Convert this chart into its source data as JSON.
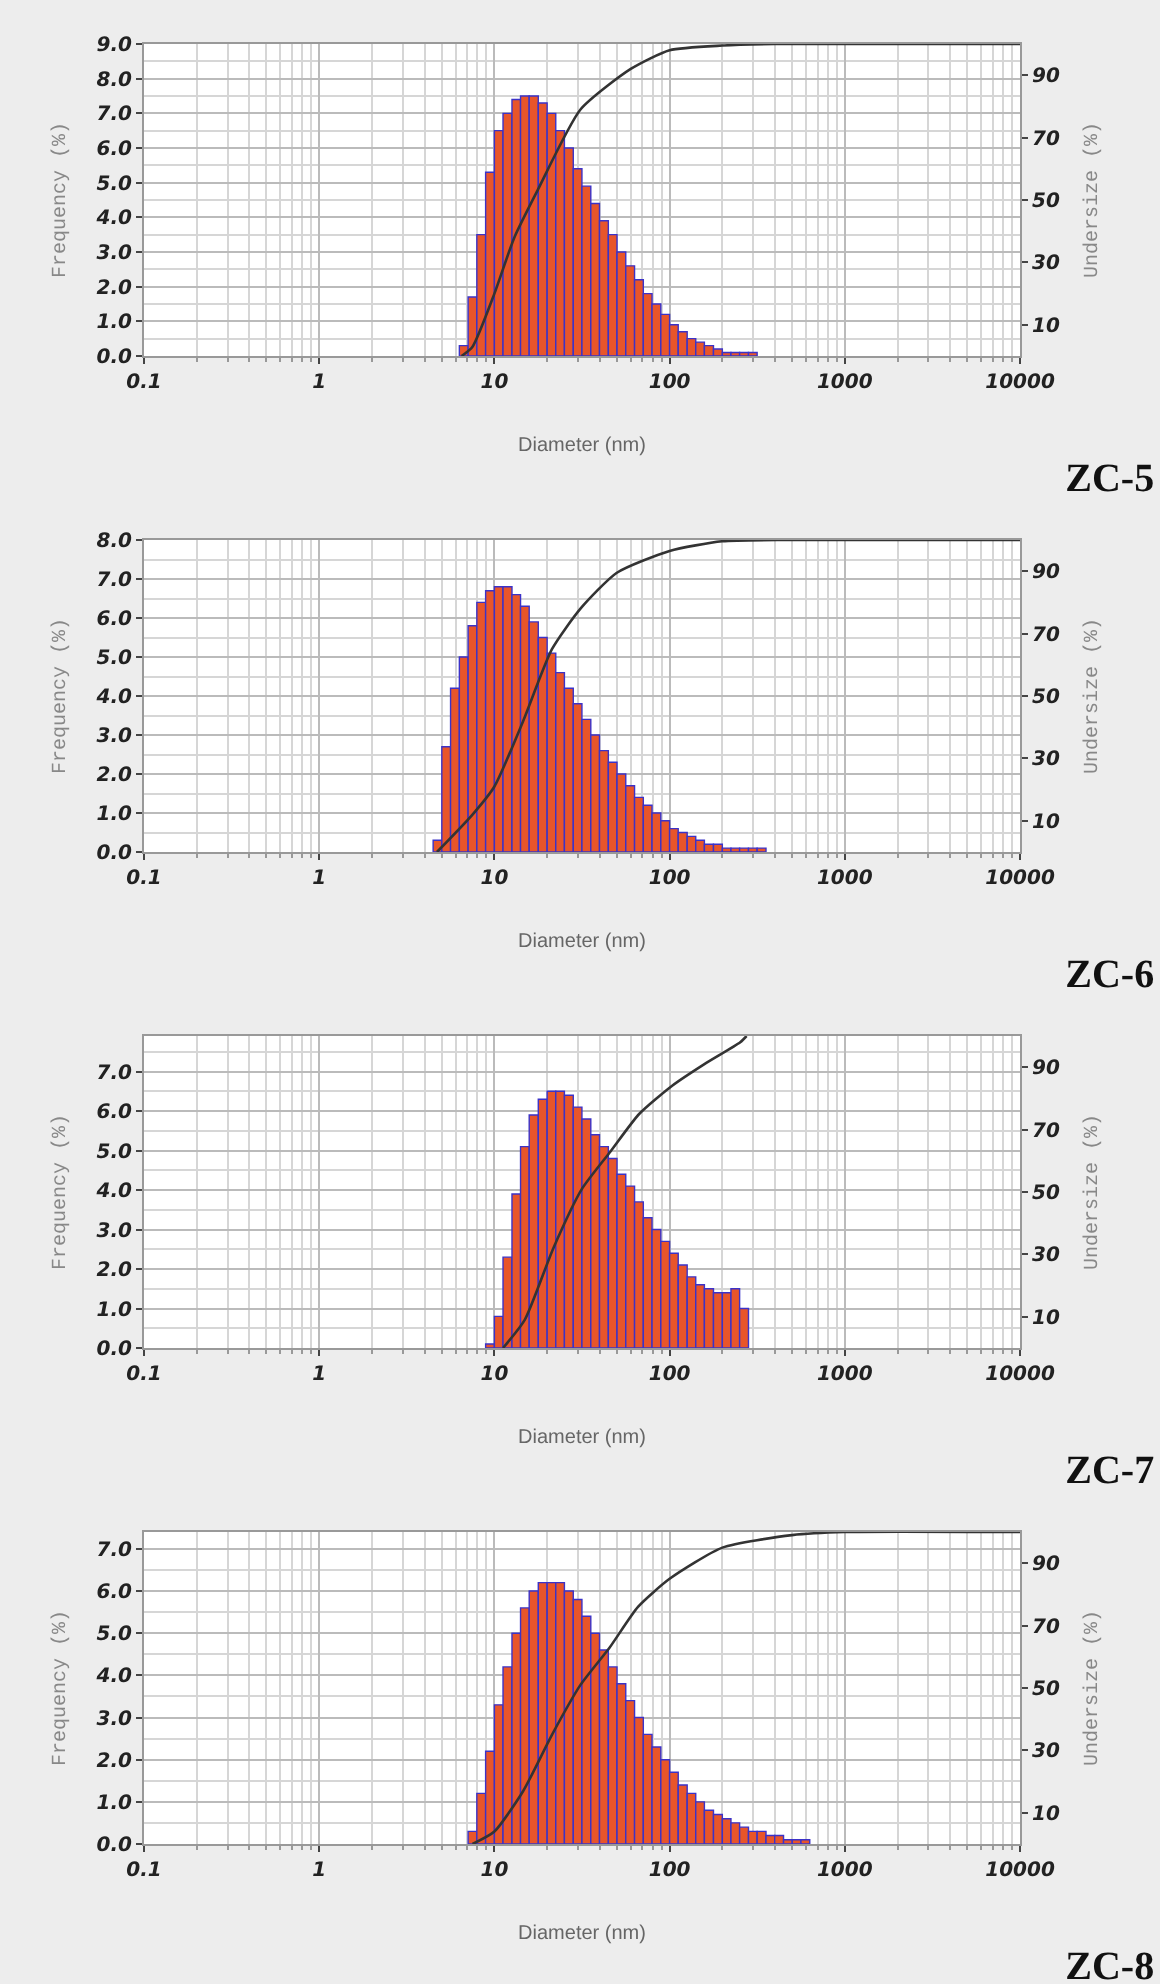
{
  "chart_data": [
    {
      "type": "histogram",
      "title": "ZC-5",
      "xlabel": "Diameter (nm)",
      "ylabel": "Frequency (%)",
      "y2label": "Undersize (%)",
      "log": "x",
      "grid": true,
      "color": "#e8552a",
      "bins": [
        6.31,
        7.08,
        7.94,
        8.91,
        10,
        11.2,
        12.6,
        14.1,
        15.8,
        17.8,
        20,
        22.4,
        25.1,
        28.2,
        31.6,
        35.5,
        39.8,
        44.7,
        50.1,
        56.2,
        63.1,
        70.8,
        79.4,
        89.1,
        100,
        112,
        126,
        141,
        158,
        178,
        200,
        224,
        251,
        282,
        316
      ],
      "values": [
        0.3,
        1.7,
        3.5,
        5.3,
        6.5,
        7.0,
        7.4,
        7.5,
        7.5,
        7.3,
        7.0,
        6.5,
        6.0,
        5.4,
        4.9,
        4.4,
        3.9,
        3.5,
        3.0,
        2.6,
        2.2,
        1.8,
        1.5,
        1.2,
        0.9,
        0.7,
        0.5,
        0.4,
        0.3,
        0.2,
        0.1,
        0.1,
        0.1,
        0.1
      ],
      "series": [
        {
          "type": "line",
          "axis": "y2",
          "color": "#333333",
          "x": [
            6.5,
            7.5,
            10,
            13,
            17.6,
            31,
            60,
            100,
            200,
            400,
            10000
          ],
          "values": [
            0,
            3,
            20,
            38,
            53,
            79,
            92,
            98,
            99.5,
            100,
            100
          ]
        }
      ],
      "xlim": [
        0.1,
        10000
      ],
      "xticks": [
        0.1,
        1,
        10,
        100,
        1000,
        10000
      ],
      "ylim": [
        0,
        9
      ],
      "yticks": [
        {
          "value": 0,
          "label": "0.0"
        },
        {
          "value": 1,
          "label": "1.0"
        },
        {
          "value": 2,
          "label": "2.0"
        },
        {
          "value": 3,
          "label": "3.0"
        },
        {
          "value": 4,
          "label": "4.0"
        },
        {
          "value": 5,
          "label": "5.0"
        },
        {
          "value": 6,
          "label": "6.0"
        },
        {
          "value": 7,
          "label": "7.0"
        },
        {
          "value": 8,
          "label": "8.0"
        },
        {
          "value": 9,
          "label": "9.0"
        }
      ],
      "y2lim": [
        0,
        100
      ],
      "y2ticks": [
        10,
        30,
        50,
        70,
        90
      ]
    },
    {
      "type": "histogram",
      "title": "ZC-6",
      "xlabel": "Diameter (nm)",
      "ylabel": "Frequency (%)",
      "y2label": "Undersize (%)",
      "log": "x",
      "grid": true,
      "color": "#e8552a",
      "bins": [
        4.47,
        5.01,
        5.62,
        6.31,
        7.08,
        7.94,
        8.91,
        10,
        11.2,
        12.6,
        14.1,
        15.8,
        17.8,
        20,
        22.4,
        25.1,
        28.2,
        31.6,
        35.5,
        39.8,
        44.7,
        50.1,
        56.2,
        63.1,
        70.8,
        79.4,
        89.1,
        100,
        112,
        126,
        141,
        158,
        178,
        200,
        224,
        251,
        282,
        316,
        355
      ],
      "values": [
        0.3,
        2.7,
        4.2,
        5.0,
        5.8,
        6.4,
        6.7,
        6.8,
        6.8,
        6.6,
        6.3,
        5.9,
        5.5,
        5.1,
        4.6,
        4.2,
        3.8,
        3.4,
        3.0,
        2.6,
        2.3,
        2.0,
        1.7,
        1.4,
        1.2,
        1.0,
        0.8,
        0.6,
        0.5,
        0.4,
        0.3,
        0.2,
        0.2,
        0.1,
        0.1,
        0.1,
        0.1,
        0.1
      ],
      "series": [
        {
          "type": "line",
          "axis": "y2",
          "color": "#333333",
          "x": [
            4.7,
            7.5,
            10,
            14.6,
            21.3,
            31,
            50,
            100,
            200,
            500,
            10000
          ],
          "values": [
            0,
            12,
            21,
            42,
            65,
            78,
            89.5,
            96.5,
            99.6,
            100,
            100
          ]
        }
      ],
      "xlim": [
        0.1,
        10000
      ],
      "xticks": [
        0.1,
        1,
        10,
        100,
        1000,
        10000
      ],
      "ylim": [
        0,
        8
      ],
      "yticks": [
        {
          "value": 0,
          "label": "0.0"
        },
        {
          "value": 1,
          "label": "1.0"
        },
        {
          "value": 2,
          "label": "2.0"
        },
        {
          "value": 3,
          "label": "3.0"
        },
        {
          "value": 4,
          "label": "4.0"
        },
        {
          "value": 5,
          "label": "5.0"
        },
        {
          "value": 6,
          "label": "6.0"
        },
        {
          "value": 7,
          "label": "7.0"
        },
        {
          "value": 8,
          "label": "8.0"
        }
      ],
      "y2lim": [
        0,
        100
      ],
      "y2ticks": [
        10,
        30,
        50,
        70,
        90
      ]
    },
    {
      "type": "histogram",
      "title": "ZC-7",
      "xlabel": "Diameter (nm)",
      "ylabel": "Frequency (%)",
      "y2label": "Undersize (%)",
      "log": "x",
      "grid": true,
      "color": "#e8552a",
      "bins": [
        8.91,
        10,
        11.2,
        12.6,
        14.1,
        15.8,
        17.8,
        20,
        22.4,
        25.1,
        28.2,
        31.6,
        35.5,
        39.8,
        44.7,
        50.1,
        56.2,
        63.1,
        70.8,
        79.4,
        89.1,
        100,
        112,
        126,
        141,
        158,
        178,
        200,
        224,
        251,
        282
      ],
      "values": [
        0.1,
        0.8,
        2.3,
        3.9,
        5.1,
        5.9,
        6.3,
        6.5,
        6.5,
        6.4,
        6.1,
        5.8,
        5.4,
        5.1,
        4.8,
        4.4,
        4.1,
        3.7,
        3.3,
        3.0,
        2.7,
        2.4,
        2.1,
        1.8,
        1.6,
        1.5,
        1.4,
        1.4,
        1.5,
        1.0
      ],
      "series": [
        {
          "type": "line",
          "axis": "y2",
          "color": "#333333",
          "x": [
            11.2,
            14.9,
            21.7,
            31.6,
            46,
            67,
            103,
            158,
            253,
            275
          ],
          "values": [
            0,
            9,
            32,
            51,
            63,
            75,
            84,
            91,
            98,
            100
          ]
        }
      ],
      "xlim": [
        0.1,
        10000
      ],
      "xticks": [
        0.1,
        1,
        10,
        100,
        1000,
        10000
      ],
      "ylim": [
        0,
        7.9
      ],
      "yticks": [
        {
          "value": 0,
          "label": "0.0"
        },
        {
          "value": 1,
          "label": "1.0"
        },
        {
          "value": 2,
          "label": "2.0"
        },
        {
          "value": 3,
          "label": "3.0"
        },
        {
          "value": 4,
          "label": "4.0"
        },
        {
          "value": 5,
          "label": "5.0"
        },
        {
          "value": 6,
          "label": "6.0"
        },
        {
          "value": 7,
          "label": "7.0"
        }
      ],
      "y2lim": [
        0,
        100
      ],
      "y2ticks": [
        10,
        30,
        50,
        70,
        90
      ]
    },
    {
      "type": "histogram",
      "title": "ZC-8",
      "xlabel": "Diameter (nm)",
      "ylabel": "Frequency (%)",
      "y2label": "Undersize (%)",
      "log": "x",
      "grid": true,
      "color": "#e8552a",
      "bins": [
        7.08,
        7.94,
        8.91,
        10,
        11.2,
        12.6,
        14.1,
        15.8,
        17.8,
        20,
        22.4,
        25.1,
        28.2,
        31.6,
        35.5,
        39.8,
        44.7,
        50.1,
        56.2,
        63.1,
        70.8,
        79.4,
        89.1,
        100,
        112,
        126,
        141,
        158,
        178,
        200,
        224,
        251,
        282,
        316,
        355,
        398,
        447,
        501,
        562,
        631
      ],
      "values": [
        0.3,
        1.2,
        2.2,
        3.3,
        4.2,
        5.0,
        5.6,
        6.0,
        6.2,
        6.2,
        6.2,
        6.0,
        5.8,
        5.4,
        5.0,
        4.6,
        4.2,
        3.8,
        3.4,
        3.0,
        2.6,
        2.3,
        2.0,
        1.7,
        1.4,
        1.2,
        1.0,
        0.8,
        0.7,
        0.6,
        0.5,
        0.4,
        0.3,
        0.3,
        0.2,
        0.2,
        0.1,
        0.1,
        0.1
      ],
      "series": [
        {
          "type": "line",
          "axis": "y2",
          "color": "#333333",
          "x": [
            7.5,
            10,
            14.6,
            21.3,
            31,
            45.5,
            66,
            100,
            200,
            500,
            1000,
            10000
          ],
          "values": [
            0,
            4,
            17,
            35,
            51,
            63,
            76,
            85,
            95,
            99,
            100,
            100
          ]
        }
      ],
      "xlim": [
        0.1,
        10000
      ],
      "xticks": [
        0.1,
        1,
        10,
        100,
        1000,
        10000
      ],
      "ylim": [
        0,
        7.4
      ],
      "yticks": [
        {
          "value": 0,
          "label": "0.0"
        },
        {
          "value": 1,
          "label": "1.0"
        },
        {
          "value": 2,
          "label": "2.0"
        },
        {
          "value": 3,
          "label": "3.0"
        },
        {
          "value": 4,
          "label": "4.0"
        },
        {
          "value": 5,
          "label": "5.0"
        },
        {
          "value": 6,
          "label": "6.0"
        },
        {
          "value": 7,
          "label": "7.0"
        }
      ],
      "y2lim": [
        0,
        100
      ],
      "y2ticks": [
        10,
        30,
        50,
        70,
        90
      ]
    }
  ]
}
